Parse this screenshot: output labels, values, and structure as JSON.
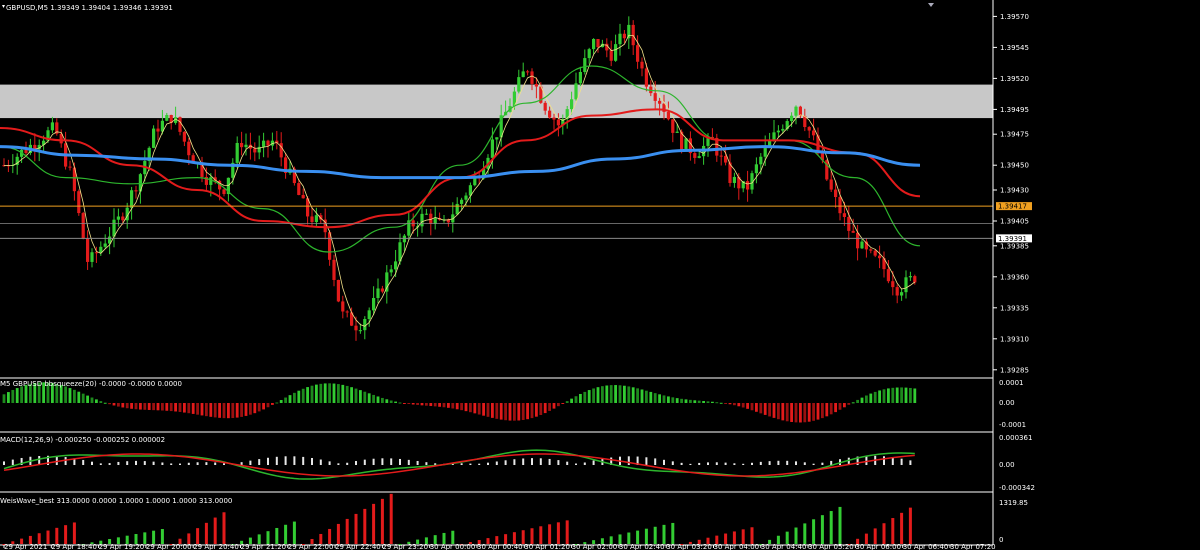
{
  "header": {
    "symbol_line": "GBPUSD,M5  1.39349 1.39404 1.39346 1.39391"
  },
  "panels": {
    "squeeze_title": "M5 GBPUSD bbsqueeze(20) -0.0000 -0.0000 0.0000",
    "macd_title": "MACD(12,26,9) -0.000250 -0.000252 0.000002",
    "weis_title": "WeisWave_best 313.0000 0.0000 1.0000 1.0000 1.0000 313.0000"
  },
  "colors": {
    "bg": "#000000",
    "bull": "#33cc33",
    "bear": "#e31b1b",
    "ma_blue": "#3a8ff0",
    "ma_red": "#e31b1b",
    "ma_green": "#2db52d",
    "ma_yellow": "#f2e28a",
    "zone": "#c8c8c8",
    "level_orange": "#f0a020",
    "grid_line": "#8a8a8a"
  },
  "chart_data": [
    {
      "type": "candlestick",
      "panel": "price",
      "price_ticks": [
        "1.39570",
        "1.39545",
        "1.39520",
        "1.39495",
        "1.39475",
        "1.39450",
        "1.39430",
        "1.39405",
        "1.39385",
        "1.39360",
        "1.39335",
        "1.39310",
        "1.39285"
      ],
      "ylim": [
        1.3928,
        1.3958
      ],
      "time_labels": [
        "29 Apr 2021",
        "29 Apr 18:40",
        "29 Apr 19:20",
        "29 Apr 20:00",
        "29 Apr 20:40",
        "29 Apr 21:20",
        "29 Apr 22:00",
        "29 Apr 22:40",
        "29 Apr 23:20",
        "30 Apr 00:00",
        "30 Apr 00:40",
        "30 Apr 01:20",
        "30 Apr 02:00",
        "30 Apr 02:40",
        "30 Apr 03:20",
        "30 Apr 04:00",
        "30 Apr 04:40",
        "30 Apr 05:20",
        "30 Apr 06:00",
        "30 Apr 06:40",
        "30 Apr 07:20"
      ],
      "current_price_label": "1.39391",
      "level_label": "1.39417",
      "zone": [
        1.39488,
        1.39515
      ],
      "close_path": [
        1.3945,
        1.3946,
        1.3947,
        1.3948,
        1.3944,
        1.3937,
        1.3939,
        1.3941,
        1.3944,
        1.3948,
        1.3949,
        1.3946,
        1.3944,
        1.3943,
        1.3947,
        1.3946,
        1.3947,
        1.3944,
        1.3941,
        1.394,
        1.3933,
        1.3932,
        1.3934,
        1.3937,
        1.394,
        1.3941,
        1.394,
        1.3942,
        1.3944,
        1.3947,
        1.395,
        1.3953,
        1.395,
        1.3948,
        1.3952,
        1.3955,
        1.3954,
        1.3956,
        1.3952,
        1.395,
        1.3947,
        1.3946,
        1.3947,
        1.3944,
        1.3943,
        1.3946,
        1.3948,
        1.395,
        1.3947,
        1.3943,
        1.394,
        1.3938,
        1.3937,
        1.3935,
        1.3936
      ],
      "ma_blue": [
        1.39465,
        1.39458,
        1.39455,
        1.3945,
        1.39445,
        1.3944,
        1.3944,
        1.39445,
        1.39455,
        1.39462,
        1.39465,
        1.3946,
        1.3945
      ],
      "ma_red": [
        1.3948,
        1.3947,
        1.3945,
        1.3943,
        1.39405,
        1.394,
        1.3941,
        1.3944,
        1.3947,
        1.3949,
        1.39495,
        1.3947,
        1.3947,
        1.3946,
        1.39425
      ],
      "ma_green": [
        1.39465,
        1.3944,
        1.39435,
        1.3944,
        1.39415,
        1.3938,
        1.394,
        1.3945,
        1.395,
        1.3953,
        1.3951,
        1.3947,
        1.3947,
        1.3944,
        1.39385
      ]
    },
    {
      "type": "histogram",
      "panel": "squeeze",
      "ticks": [
        "0.0001",
        "0.00",
        "-0.0001"
      ],
      "ylim": [
        -0.00012,
        0.00012
      ]
    },
    {
      "type": "line",
      "panel": "macd",
      "ticks": [
        "0.000361",
        "0.00",
        "-0.000342"
      ],
      "ylim": [
        -0.00036,
        0.00037
      ]
    },
    {
      "type": "bar",
      "panel": "weis",
      "ticks": [
        "1319.85",
        "0"
      ],
      "ylim": [
        0,
        1400
      ]
    }
  ]
}
